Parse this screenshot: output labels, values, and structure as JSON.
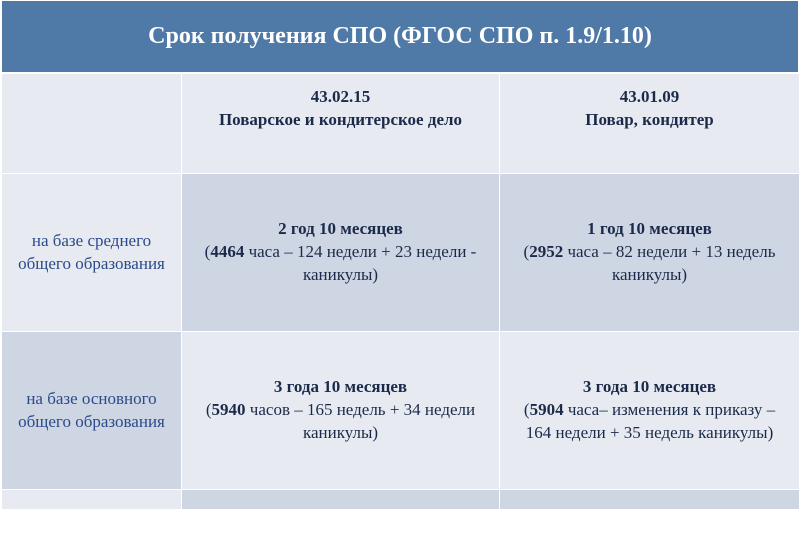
{
  "title": "Срок получения СПО (ФГОС СПО п. 1.9/1.10)",
  "colors": {
    "title_bg": "#4f7aa8",
    "title_text": "#ffffff",
    "light_bg": "#e7ebf1",
    "dark_bg": "#cfd6e3",
    "label_text": "#2a4a8a",
    "cell_text": "#1b2a4a",
    "border": "#ffffff"
  },
  "columns": {
    "c1_code": "43.02.15",
    "c1_name": "Поварское и кондитерское дело",
    "c2_code": "43.01.09",
    "c2_name": "Повар, кондитер"
  },
  "rows": [
    {
      "label": "на базе среднего общего образования",
      "c1_duration": "2 год 10 месяцев",
      "c1_hours": "4464",
      "c1_detail_before": "(",
      "c1_detail_after": " часа – 124 недели + 23 недели - каникулы)",
      "c2_duration": "1 год 10 месяцев",
      "c2_hours": "2952",
      "c2_detail_before": "(",
      "c2_detail_after": " часа – 82 недели + 13 недель каникулы)"
    },
    {
      "label": "на базе основного общего образования",
      "c1_duration": "3 года 10 месяцев",
      "c1_hours": "5940",
      "c1_detail_before": "(",
      "c1_detail_after": " часов – 165 недель + 34 недели каникулы)",
      "c2_duration": "3 года 10 месяцев",
      "c2_hours": "5904",
      "c2_detail_before": "(",
      "c2_detail_after": " часа– изменения к приказу – 164 недели + 35 недель каникулы)"
    }
  ]
}
